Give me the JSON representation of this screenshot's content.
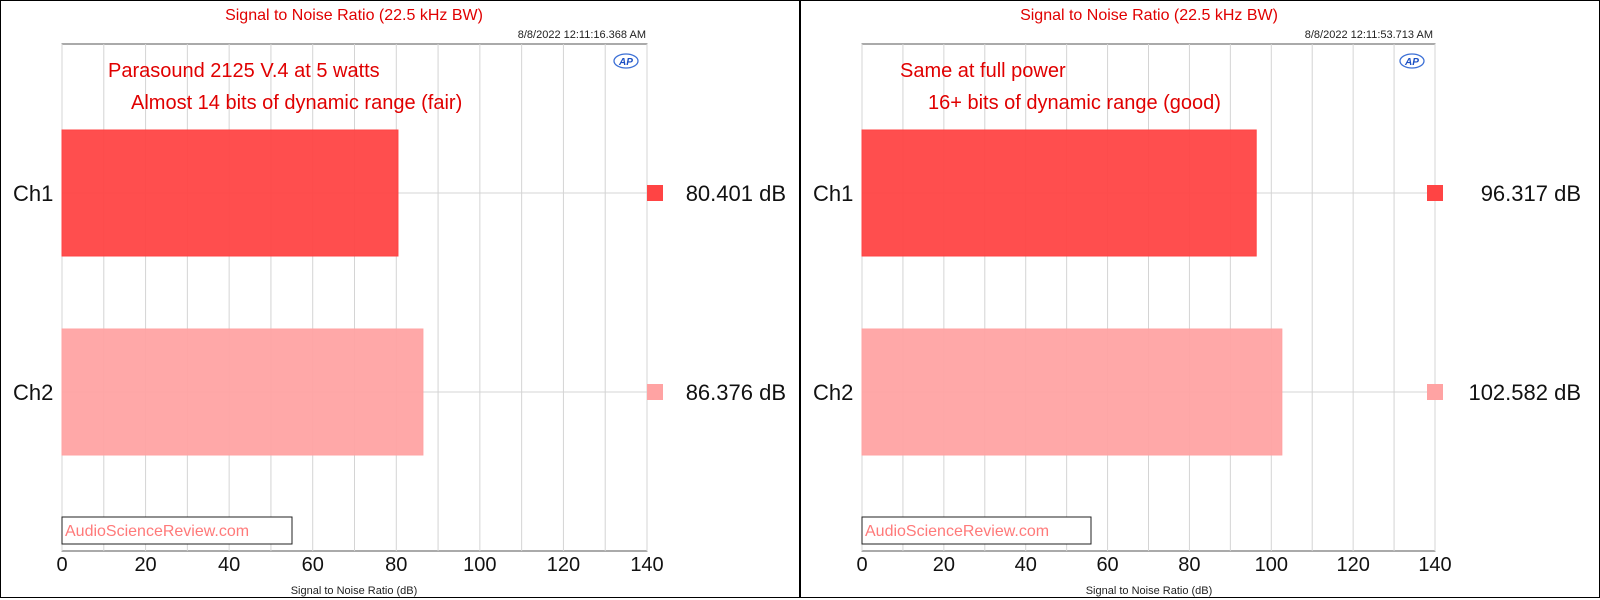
{
  "chart_data": [
    {
      "type": "bar",
      "title": "Signal to Noise Ratio (22.5 kHz BW)",
      "timestamp": "8/8/2022 12:11:16.368 AM",
      "xlabel": "Signal to Noise Ratio (dB)",
      "xlim": [
        0,
        140
      ],
      "x_ticks": [
        "0",
        "20",
        "40",
        "60",
        "80",
        "100",
        "120",
        "140"
      ],
      "grid": true,
      "categories": [
        "Ch1",
        "Ch2"
      ],
      "values": [
        80.401,
        86.376
      ],
      "value_labels": [
        "80.401 dB",
        "86.376 dB"
      ],
      "colors": [
        "#ff4444",
        "#ffa3a3"
      ],
      "annotations": [
        "Parasound 2125 V.4 at 5 watts",
        "Almost 14 bits of dynamic range (fair)"
      ],
      "logo": "AP",
      "watermark": "AudioScienceReview.com"
    },
    {
      "type": "bar",
      "title": "Signal to Noise Ratio (22.5 kHz BW)",
      "timestamp": "8/8/2022 12:11:53.713 AM",
      "xlabel": "Signal to Noise Ratio (dB)",
      "xlim": [
        0,
        140
      ],
      "x_ticks": [
        "0",
        "20",
        "40",
        "60",
        "80",
        "100",
        "120",
        "140"
      ],
      "grid": true,
      "categories": [
        "Ch1",
        "Ch2"
      ],
      "values": [
        96.317,
        102.582
      ],
      "value_labels": [
        "96.317 dB",
        "102.582 dB"
      ],
      "colors": [
        "#ff4444",
        "#ffa3a3"
      ],
      "annotations": [
        "Same at full power",
        "16+ bits of dynamic range (good)"
      ],
      "logo": "AP",
      "watermark": "AudioScienceReview.com"
    }
  ]
}
